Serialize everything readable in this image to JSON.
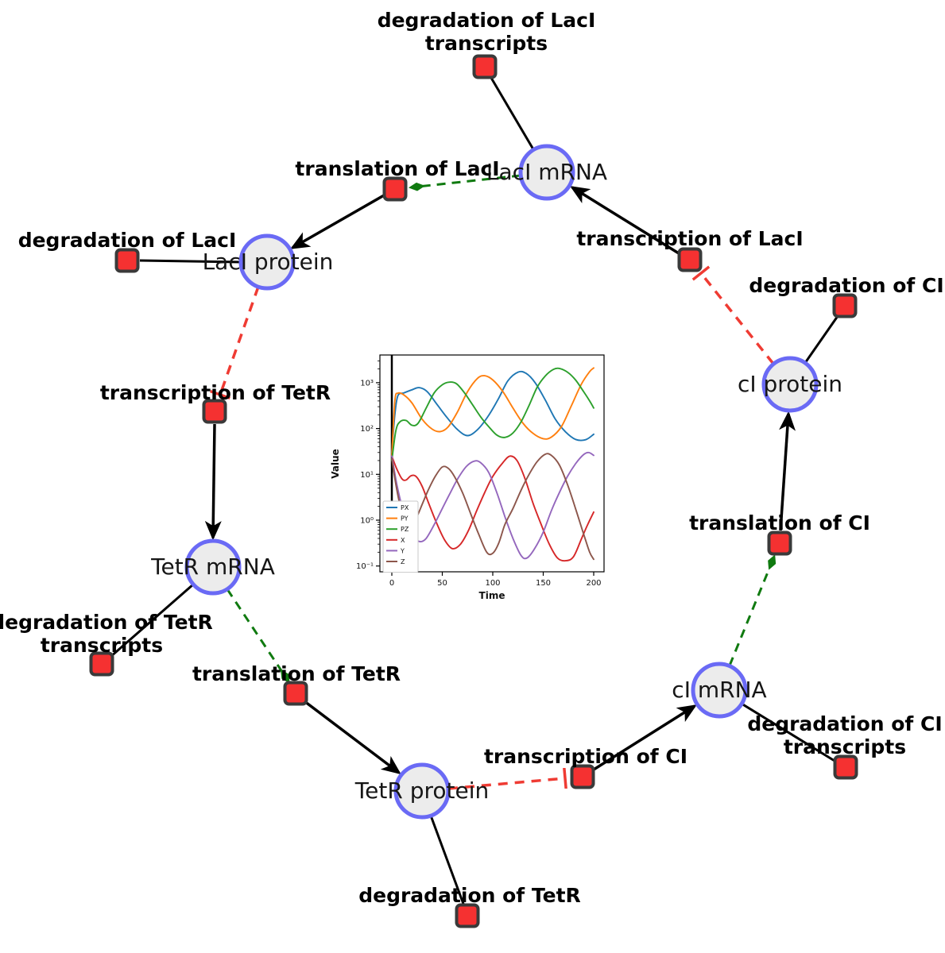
{
  "diagram": {
    "species": [
      {
        "label": "LacI mRNA"
      },
      {
        "label": "LacI protein"
      },
      {
        "label": "TetR mRNA"
      },
      {
        "label": "TetR protein"
      },
      {
        "label": "cI mRNA"
      },
      {
        "label": "cI protein"
      }
    ],
    "reactions": [
      {
        "label_lines": [
          "degradation of LacI",
          "transcripts"
        ]
      },
      {
        "label_lines": [
          "translation of LacI"
        ]
      },
      {
        "label_lines": [
          "degradation of LacI"
        ]
      },
      {
        "label_lines": [
          "transcription of TetR"
        ]
      },
      {
        "label_lines": [
          "degradation of TetR",
          "transcripts"
        ]
      },
      {
        "label_lines": [
          "translation of TetR"
        ]
      },
      {
        "label_lines": [
          "degradation of TetR"
        ]
      },
      {
        "label_lines": [
          "transcription of CI"
        ]
      },
      {
        "label_lines": [
          "degradation of CI",
          "transcripts"
        ]
      },
      {
        "label_lines": [
          "translation of CI"
        ]
      },
      {
        "label_lines": [
          "degradation of CI"
        ]
      },
      {
        "label_lines": [
          "transcription of LacI"
        ]
      }
    ],
    "colors": {
      "species_fill": "#ececec",
      "species_border": "#6a6af5",
      "reaction_fill": "#f53131",
      "reaction_border": "#3a3a3a",
      "edge": "#000000",
      "inhibition_edge": "#ef3b33",
      "modifier_edge": "#107a10"
    }
  },
  "chart_data": {
    "type": "line",
    "title": "",
    "xlabel": "Time",
    "ylabel": "Value",
    "x_ticks": [
      0,
      50,
      100,
      150,
      200
    ],
    "y_ticks": [
      {
        "v": 0.1,
        "label": "10⁻¹"
      },
      {
        "v": 1,
        "label": "10⁰"
      },
      {
        "v": 10,
        "label": "10¹"
      },
      {
        "v": 100,
        "label": "10²"
      },
      {
        "v": 1000,
        "label": "10³"
      }
    ],
    "xlim": [
      -12,
      210
    ],
    "ylim_log10": [
      -1.126,
      3.6
    ],
    "yscale": "log",
    "legend_position": "lower left",
    "annotations": [
      {
        "type": "vline",
        "x": 0,
        "color": "#000000",
        "width": 2.5
      }
    ],
    "series": [
      {
        "name": "PX",
        "color": "#1f77b4",
        "points": [
          [
            0,
            30
          ],
          [
            3,
            200
          ],
          [
            6,
            520
          ],
          [
            12,
            600
          ],
          [
            20,
            700
          ],
          [
            27,
            780
          ],
          [
            35,
            640
          ],
          [
            45,
            330
          ],
          [
            55,
            170
          ],
          [
            65,
            95
          ],
          [
            75,
            70
          ],
          [
            85,
            95
          ],
          [
            95,
            180
          ],
          [
            105,
            420
          ],
          [
            115,
            1100
          ],
          [
            125,
            1700
          ],
          [
            133,
            1600
          ],
          [
            142,
            1000
          ],
          [
            152,
            420
          ],
          [
            162,
            160
          ],
          [
            172,
            85
          ],
          [
            182,
            58
          ],
          [
            192,
            57
          ],
          [
            200,
            75
          ]
        ]
      },
      {
        "name": "PY",
        "color": "#ff7f0e",
        "points": [
          [
            0,
            25
          ],
          [
            3,
            400
          ],
          [
            6,
            590
          ],
          [
            12,
            540
          ],
          [
            20,
            360
          ],
          [
            30,
            160
          ],
          [
            40,
            97
          ],
          [
            48,
            86
          ],
          [
            56,
            110
          ],
          [
            65,
            230
          ],
          [
            75,
            640
          ],
          [
            85,
            1250
          ],
          [
            92,
            1420
          ],
          [
            100,
            1150
          ],
          [
            110,
            640
          ],
          [
            120,
            280
          ],
          [
            130,
            130
          ],
          [
            140,
            78
          ],
          [
            150,
            60
          ],
          [
            158,
            65
          ],
          [
            168,
            110
          ],
          [
            178,
            320
          ],
          [
            188,
            950
          ],
          [
            196,
            1750
          ],
          [
            200,
            2100
          ]
        ]
      },
      {
        "name": "PZ",
        "color": "#2ca02c",
        "points": [
          [
            0,
            20
          ],
          [
            4,
            90
          ],
          [
            8,
            140
          ],
          [
            14,
            150
          ],
          [
            20,
            118
          ],
          [
            26,
            130
          ],
          [
            34,
            280
          ],
          [
            42,
            600
          ],
          [
            50,
            900
          ],
          [
            57,
            1030
          ],
          [
            64,
            950
          ],
          [
            72,
            600
          ],
          [
            80,
            330
          ],
          [
            88,
            180
          ],
          [
            96,
            110
          ],
          [
            104,
            72
          ],
          [
            112,
            64
          ],
          [
            120,
            80
          ],
          [
            128,
            140
          ],
          [
            136,
            320
          ],
          [
            144,
            800
          ],
          [
            152,
            1400
          ],
          [
            160,
            1950
          ],
          [
            166,
            2050
          ],
          [
            174,
            1700
          ],
          [
            182,
            1150
          ],
          [
            190,
            640
          ],
          [
            196,
            400
          ],
          [
            200,
            280
          ]
        ]
      },
      {
        "name": "X",
        "color": "#d62728",
        "points": [
          [
            0,
            25
          ],
          [
            5,
            13
          ],
          [
            10,
            8
          ],
          [
            14,
            7.5
          ],
          [
            19,
            9.3
          ],
          [
            24,
            9
          ],
          [
            30,
            5.5
          ],
          [
            36,
            2.5
          ],
          [
            44,
            0.9
          ],
          [
            52,
            0.38
          ],
          [
            60,
            0.24
          ],
          [
            68,
            0.3
          ],
          [
            76,
            0.6
          ],
          [
            84,
            1.6
          ],
          [
            92,
            4
          ],
          [
            100,
            9
          ],
          [
            110,
            18
          ],
          [
            117,
            25
          ],
          [
            124,
            20
          ],
          [
            132,
            8
          ],
          [
            140,
            2.3
          ],
          [
            148,
            0.8
          ],
          [
            156,
            0.3
          ],
          [
            164,
            0.15
          ],
          [
            172,
            0.13
          ],
          [
            180,
            0.16
          ],
          [
            188,
            0.4
          ],
          [
            194,
            0.8
          ],
          [
            200,
            1.5
          ]
        ]
      },
      {
        "name": "Y",
        "color": "#9467bd",
        "points": [
          [
            0,
            25
          ],
          [
            5,
            6
          ],
          [
            10,
            2
          ],
          [
            16,
            0.8
          ],
          [
            22,
            0.42
          ],
          [
            28,
            0.34
          ],
          [
            34,
            0.4
          ],
          [
            42,
            0.8
          ],
          [
            50,
            1.8
          ],
          [
            58,
            4
          ],
          [
            66,
            8.5
          ],
          [
            74,
            15
          ],
          [
            82,
            19.5
          ],
          [
            88,
            18
          ],
          [
            96,
            11
          ],
          [
            104,
            4
          ],
          [
            112,
            1.2
          ],
          [
            120,
            0.4
          ],
          [
            128,
            0.17
          ],
          [
            134,
            0.15
          ],
          [
            142,
            0.25
          ],
          [
            150,
            0.55
          ],
          [
            158,
            1.6
          ],
          [
            166,
            4
          ],
          [
            174,
            9
          ],
          [
            182,
            17
          ],
          [
            190,
            27
          ],
          [
            195,
            30
          ],
          [
            200,
            26
          ]
        ]
      },
      {
        "name": "Z",
        "color": "#8c564b",
        "points": [
          [
            0,
            22
          ],
          [
            4,
            6
          ],
          [
            8,
            2.2
          ],
          [
            13,
            1.1
          ],
          [
            18,
            0.85
          ],
          [
            24,
            1.1
          ],
          [
            30,
            2.2
          ],
          [
            36,
            4.5
          ],
          [
            43,
            9
          ],
          [
            50,
            14.5
          ],
          [
            56,
            13.5
          ],
          [
            62,
            9
          ],
          [
            70,
            4
          ],
          [
            78,
            1.4
          ],
          [
            86,
            0.5
          ],
          [
            94,
            0.2
          ],
          [
            100,
            0.19
          ],
          [
            106,
            0.32
          ],
          [
            112,
            0.8
          ],
          [
            120,
            1.8
          ],
          [
            128,
            4.5
          ],
          [
            136,
            10
          ],
          [
            144,
            19
          ],
          [
            152,
            27.5
          ],
          [
            158,
            26
          ],
          [
            166,
            16
          ],
          [
            174,
            6
          ],
          [
            182,
            1.8
          ],
          [
            190,
            0.5
          ],
          [
            196,
            0.2
          ],
          [
            200,
            0.14
          ]
        ]
      }
    ]
  }
}
